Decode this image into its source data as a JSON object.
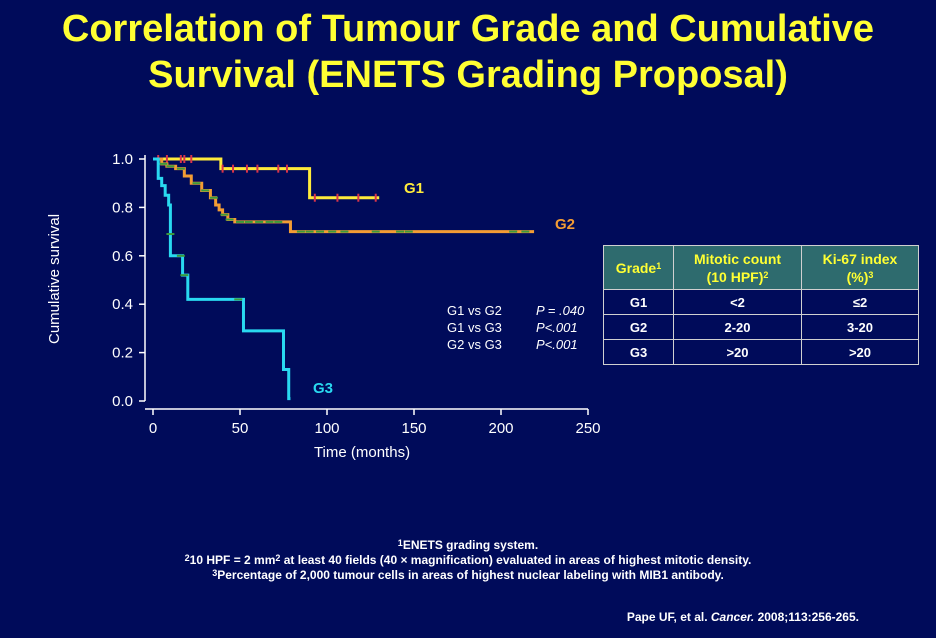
{
  "title": {
    "line1": "Correlation of Tumour Grade and Cumulative",
    "line2": "Survival (ENETS Grading Proposal)"
  },
  "colors": {
    "background": "#000b5a",
    "title": "#ffff33",
    "G1": "#ffeb3b",
    "G2": "#f39c34",
    "G3": "#29d9f0",
    "censor_red": "#d9344a",
    "censor_green": "#3c9a3c",
    "table_header_bg": "#2e6b6e"
  },
  "chart_data": {
    "type": "line",
    "subtype": "kaplan-meier step",
    "title": "",
    "xlabel": "Time (months)",
    "ylabel": "Cumulative survival",
    "xlim": [
      0,
      250
    ],
    "ylim": [
      0,
      1
    ],
    "xticks": [
      "0",
      "50",
      "100",
      "150",
      "200",
      "250"
    ],
    "yticks": [
      "0.0",
      "0.2",
      "0.4",
      "0.6",
      "0.8",
      "1.0"
    ],
    "series": [
      {
        "name": "G1",
        "x": [
          0,
          39,
          90,
          130
        ],
        "y": [
          1.0,
          0.96,
          0.84,
          0.84
        ],
        "censored": [
          [
            3,
            1.0
          ],
          [
            8,
            1.0
          ],
          [
            16,
            1.0
          ],
          [
            18,
            1.0
          ],
          [
            22,
            1.0
          ],
          [
            40,
            0.96
          ],
          [
            46,
            0.96
          ],
          [
            54,
            0.96
          ],
          [
            60,
            0.96
          ],
          [
            72,
            0.96
          ],
          [
            77,
            0.96
          ],
          [
            93,
            0.84
          ],
          [
            106,
            0.84
          ],
          [
            118,
            0.84
          ],
          [
            128,
            0.84
          ]
        ]
      },
      {
        "name": "G2",
        "x": [
          0,
          5,
          8,
          13,
          18,
          22,
          28,
          33,
          36,
          38,
          40,
          43,
          47,
          79,
          219
        ],
        "y": [
          1.0,
          0.98,
          0.97,
          0.96,
          0.93,
          0.9,
          0.87,
          0.84,
          0.81,
          0.79,
          0.77,
          0.75,
          0.74,
          0.7,
          0.7
        ],
        "censored": [
          [
            6,
            0.98
          ],
          [
            10,
            0.97
          ],
          [
            16,
            0.96
          ],
          [
            25,
            0.9
          ],
          [
            30,
            0.87
          ],
          [
            35,
            0.84
          ],
          [
            41,
            0.77
          ],
          [
            44,
            0.75
          ],
          [
            50,
            0.74
          ],
          [
            55,
            0.74
          ],
          [
            61,
            0.74
          ],
          [
            67,
            0.74
          ],
          [
            72,
            0.74
          ],
          [
            85,
            0.7
          ],
          [
            90,
            0.7
          ],
          [
            96,
            0.7
          ],
          [
            103,
            0.7
          ],
          [
            110,
            0.7
          ],
          [
            128,
            0.7
          ],
          [
            142,
            0.7
          ],
          [
            147,
            0.7
          ],
          [
            207,
            0.7
          ],
          [
            214,
            0.7
          ]
        ]
      },
      {
        "name": "G3",
        "x": [
          0,
          3,
          5,
          7,
          9,
          10,
          17,
          20,
          52,
          75,
          78,
          79
        ],
        "y": [
          1.0,
          0.92,
          0.89,
          0.85,
          0.81,
          0.6,
          0.52,
          0.42,
          0.29,
          0.13,
          0.01,
          0.01
        ],
        "censored": [
          [
            10,
            0.69
          ],
          [
            16,
            0.6
          ],
          [
            18,
            0.52
          ],
          [
            49,
            0.42
          ]
        ]
      }
    ],
    "series_labels": [
      {
        "series": "G1",
        "text": "G1"
      },
      {
        "series": "G2",
        "text": "G2"
      },
      {
        "series": "G3",
        "text": "G3"
      }
    ],
    "annotations": [
      {
        "comparison": "G1 vs G2",
        "p": "P = .040"
      },
      {
        "comparison": "G1 vs G3",
        "p": "P<.001"
      },
      {
        "comparison": "G2 vs G3",
        "p": "P<.001"
      }
    ]
  },
  "table": {
    "headers": [
      {
        "text": "Grade",
        "sup": "1"
      },
      {
        "text": "Mitotic count",
        "text2": "(10 HPF)",
        "sup": "2"
      },
      {
        "text": "Ki-67 index",
        "text2": "(%)",
        "sup": "3"
      }
    ],
    "rows": [
      [
        "G1",
        "<2",
        "≤2"
      ],
      [
        "G2",
        "2-20",
        "3-20"
      ],
      [
        "G3",
        ">20",
        ">20"
      ]
    ]
  },
  "footnotes": {
    "f1_sup": "1",
    "f1": "ENETS grading system.",
    "f2_sup": "2",
    "f2a": "10 HPF = 2 mm",
    "f2_sup2": "2",
    "f2b": " at least 40 fields (40 × magnification) evaluated in areas of highest mitotic density.",
    "f3_sup": "3",
    "f3": "Percentage of 2,000 tumour cells in areas of highest nuclear labeling with MIB1 antibody."
  },
  "citation": {
    "authors": "Pape UF, et al. ",
    "journal": "Cancer.",
    "details": " 2008;113:256-265."
  }
}
